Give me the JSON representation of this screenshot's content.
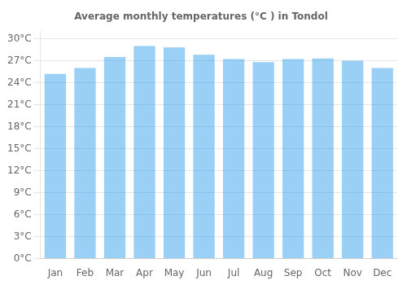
{
  "chart_data": {
    "type": "bar",
    "title": "Average monthly temperatures (°C ) in Tondol",
    "categories": [
      "Jan",
      "Feb",
      "Mar",
      "Apr",
      "May",
      "Jun",
      "Jul",
      "Aug",
      "Sep",
      "Oct",
      "Nov",
      "Dec"
    ],
    "values": [
      25.2,
      26.0,
      27.5,
      29.0,
      28.8,
      27.8,
      27.2,
      26.8,
      27.2,
      27.3,
      27.0,
      26.0
    ],
    "ylim": [
      0,
      31
    ],
    "yticks": [
      {
        "value": 0,
        "label": "0°C"
      },
      {
        "value": 3,
        "label": "3°C"
      },
      {
        "value": 6,
        "label": "6°C"
      },
      {
        "value": 9,
        "label": "9°C"
      },
      {
        "value": 12,
        "label": "12°C"
      },
      {
        "value": 15,
        "label": "15°C"
      },
      {
        "value": 18,
        "label": "18°C"
      },
      {
        "value": 21,
        "label": "21°C"
      },
      {
        "value": 24,
        "label": "24°C"
      },
      {
        "value": 27,
        "label": "27°C"
      },
      {
        "value": 30,
        "label": "30°C"
      }
    ],
    "grid": true
  }
}
